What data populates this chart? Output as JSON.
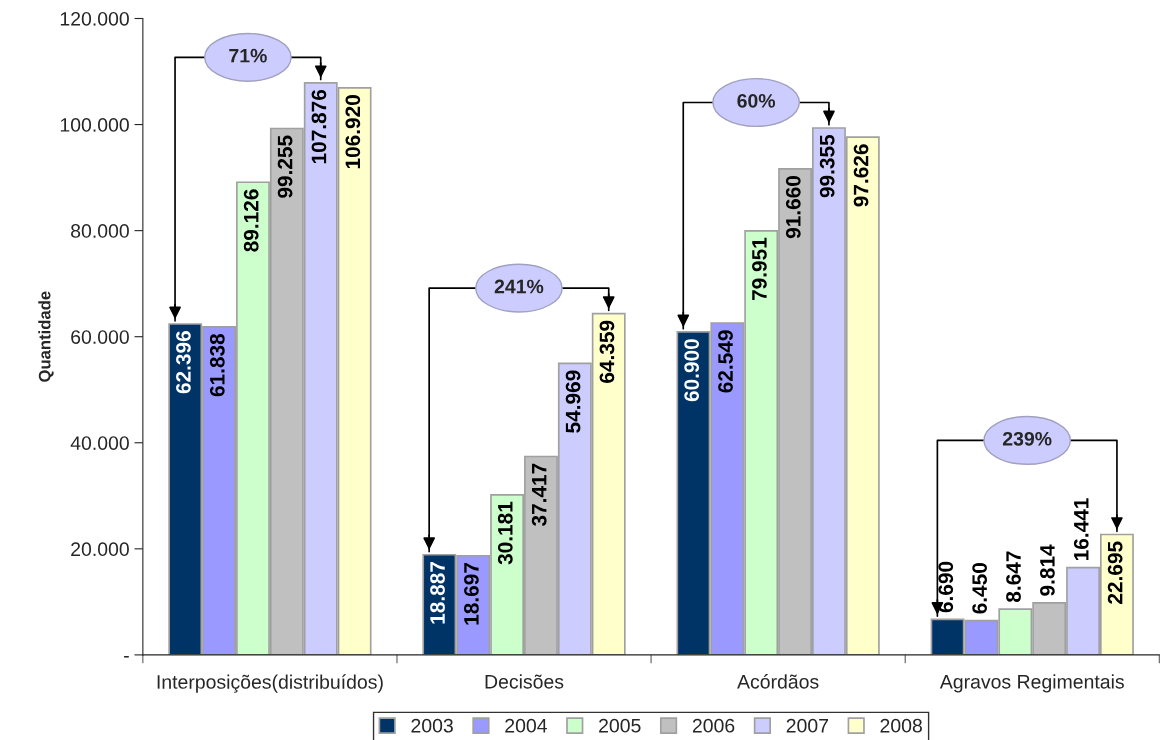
{
  "chart_data": {
    "type": "bar",
    "ylabel": "Quantidade",
    "categories": [
      "Interposições(distribuídos)",
      "Decisões",
      "Acórdãos",
      "Agravos Regimentais"
    ],
    "series": [
      {
        "name": "2003",
        "color": "#003366",
        "values": [
          62396,
          18887,
          60900,
          6690
        ],
        "value_labels": [
          "62.396",
          "18.887",
          "60.900",
          "6.690"
        ]
      },
      {
        "name": "2004",
        "color": "#9999ff",
        "values": [
          61838,
          18697,
          62549,
          6450
        ],
        "value_labels": [
          "61.838",
          "18.697",
          "62.549",
          "6.450"
        ]
      },
      {
        "name": "2005",
        "color": "#ccffcc",
        "values": [
          89126,
          30181,
          79951,
          8647
        ],
        "value_labels": [
          "89.126",
          "30.181",
          "79.951",
          "8.647"
        ]
      },
      {
        "name": "2006",
        "color": "#c0c0c0",
        "values": [
          99255,
          37417,
          91660,
          9814
        ],
        "value_labels": [
          "99.255",
          "37.417",
          "91.660",
          "9.814"
        ]
      },
      {
        "name": "2007",
        "color": "#ccccff",
        "values": [
          107876,
          54969,
          99355,
          16441
        ],
        "value_labels": [
          "107.876",
          "54.969",
          "99.355",
          "16.441"
        ]
      },
      {
        "name": "2008",
        "color": "#ffffcc",
        "values": [
          106920,
          64359,
          97626,
          22695
        ],
        "value_labels": [
          "106.920",
          "64.359",
          "97.626",
          "22.695"
        ]
      }
    ],
    "ylim": [
      0,
      120000
    ],
    "yticks": [
      {
        "value": 0,
        "label": "-"
      },
      {
        "value": 20000,
        "label": "20.000"
      },
      {
        "value": 40000,
        "label": "40.000"
      },
      {
        "value": 60000,
        "label": "60.000"
      },
      {
        "value": 80000,
        "label": "80.000"
      },
      {
        "value": 100000,
        "label": "100.000"
      },
      {
        "value": 120000,
        "label": "120.000"
      }
    ],
    "annotations": [
      "71%",
      "241%",
      "60%",
      "239%"
    ],
    "legend": "bottom",
    "grid": false
  }
}
